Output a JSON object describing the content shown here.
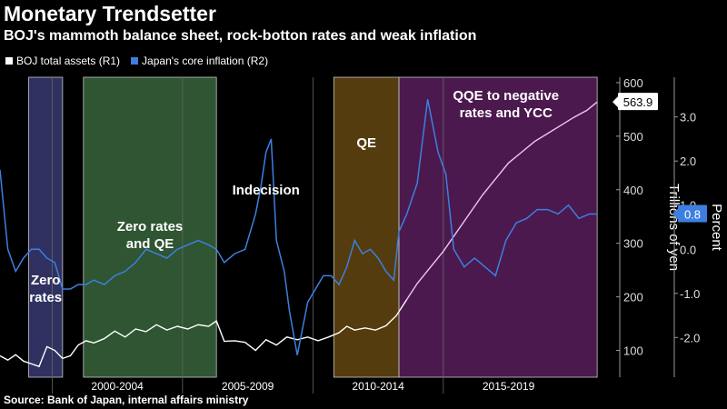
{
  "title": "Monetary Trendsetter",
  "subtitle": "BOJ's mammoth balance sheet, rock-botton rates and weak inflation",
  "source": "Source: Bank of Japan, internal affairs ministry",
  "colors": {
    "background": "#000000",
    "assets_line": "#ffffff",
    "inflation_line": "#3d7fe0",
    "zero_rates_band": "#3c3d78",
    "zero_rates_qe_band": "#3b6a3e",
    "qe_band": "#6a4b12",
    "qqe_band": "#5e1f62",
    "assets_after_2013": "#f2c6f0",
    "badge_bg": "#ffffff",
    "badge_blue": "#3d7fe0"
  },
  "chart_data": {
    "type": "line",
    "title": "Monetary Trendsetter",
    "subtitle": "BOJ's mammoth balance sheet, rock-botton rates and weak inflation",
    "x_range": [
      1998.0,
      2021.0
    ],
    "x_ticks": [
      {
        "label": "2000-2004",
        "value": 2002.5
      },
      {
        "label": "2005-2009",
        "value": 2007.5
      },
      {
        "label": "2010-2014",
        "value": 2012.5
      },
      {
        "label": "2015-2019",
        "value": 2017.5
      }
    ],
    "x_separators": [
      2000,
      2005,
      2010,
      2015
    ],
    "left_axis": {
      "label": "Trillions of yen",
      "range": [
        50,
        610
      ],
      "ticks": [
        100,
        200,
        300,
        400,
        500,
        600
      ]
    },
    "right_axis": {
      "label": "Percent",
      "range": [
        -2.9,
        3.9
      ],
      "ticks": [
        3.0,
        2.0,
        1.0,
        0.0,
        -1.0,
        -2.0
      ],
      "tick_labels": [
        "3.0",
        "2.0",
        "1.0",
        "0.0",
        "-1.0",
        "-2.0"
      ]
    },
    "legend": [
      {
        "label": "BOJ total assets (R1)",
        "color": "#ffffff"
      },
      {
        "label": "Japan's core inflation  (R2)",
        "color": "#3d7fe0"
      }
    ],
    "regimes": [
      {
        "label": "Zero rates",
        "start": 1999.1,
        "end": 2000.4,
        "color": "#3c3d78"
      },
      {
        "label": "Zero rates and QE",
        "start": 2001.2,
        "end": 2006.3,
        "color": "#3b6a3e"
      },
      {
        "label": "QE",
        "start": 2010.8,
        "end": 2013.3,
        "color": "#6a4b12"
      },
      {
        "label": "QQE to negative rates and YCC",
        "start": 2013.3,
        "end": 2020.9,
        "color": "#5e1f62"
      }
    ],
    "annotations": [
      {
        "text": "Indecision",
        "x": 2008.2,
        "y_pct": 1.2
      }
    ],
    "series": [
      {
        "name": "BOJ total assets (R1)",
        "axis": "left",
        "x": [
          1998.0,
          1998.3,
          1998.6,
          1998.9,
          1999.2,
          1999.5,
          1999.8,
          2000.1,
          2000.4,
          2000.7,
          2001.0,
          2001.3,
          2001.6,
          2002.0,
          2002.4,
          2002.8,
          2003.2,
          2003.6,
          2004.0,
          2004.4,
          2004.8,
          2005.2,
          2005.6,
          2006.0,
          2006.3,
          2006.6,
          2007.0,
          2007.4,
          2007.8,
          2008.2,
          2008.6,
          2009.0,
          2009.4,
          2009.8,
          2010.2,
          2010.6,
          2011.0,
          2011.3,
          2011.6,
          2012.0,
          2012.4,
          2012.8,
          2013.2,
          2013.6,
          2014.0,
          2014.5,
          2015.0,
          2015.5,
          2016.0,
          2016.5,
          2017.0,
          2017.5,
          2018.0,
          2018.5,
          2019.0,
          2019.5,
          2020.0,
          2020.5,
          2020.9
        ],
        "values": [
          90,
          82,
          92,
          80,
          75,
          70,
          107,
          100,
          85,
          90,
          110,
          118,
          114,
          122,
          136,
          125,
          140,
          135,
          148,
          138,
          145,
          140,
          148,
          145,
          155,
          117,
          118,
          115,
          100,
          120,
          110,
          125,
          120,
          125,
          118,
          125,
          133,
          145,
          138,
          142,
          138,
          146,
          165,
          195,
          225,
          255,
          285,
          320,
          355,
          390,
          420,
          450,
          470,
          490,
          505,
          520,
          535,
          548,
          563.9
        ]
      },
      {
        "name": "Japan's core inflation  (R2)",
        "axis": "right",
        "x": [
          1998.0,
          1998.3,
          1998.6,
          1998.9,
          1999.2,
          1999.5,
          1999.8,
          2000.1,
          2000.4,
          2000.7,
          2001.0,
          2001.3,
          2001.6,
          2002.0,
          2002.4,
          2002.8,
          2003.2,
          2003.6,
          2004.0,
          2004.4,
          2004.8,
          2005.2,
          2005.6,
          2006.0,
          2006.3,
          2006.6,
          2007.0,
          2007.4,
          2007.8,
          2008.0,
          2008.2,
          2008.4,
          2008.6,
          2008.9,
          2009.1,
          2009.4,
          2009.8,
          2010.1,
          2010.4,
          2010.7,
          2011.0,
          2011.3,
          2011.6,
          2011.9,
          2012.2,
          2012.5,
          2012.8,
          2013.1,
          2013.3,
          2013.6,
          2014.0,
          2014.4,
          2014.8,
          2015.1,
          2015.4,
          2015.8,
          2016.2,
          2016.6,
          2017.0,
          2017.4,
          2017.8,
          2018.2,
          2018.6,
          2019.0,
          2019.4,
          2019.8,
          2020.2,
          2020.6,
          2020.9
        ],
        "values": [
          1.8,
          0.0,
          -0.5,
          -0.2,
          0.0,
          0.0,
          -0.2,
          -0.3,
          -0.9,
          -0.9,
          -0.8,
          -0.8,
          -0.7,
          -0.8,
          -0.6,
          -0.5,
          -0.3,
          0.0,
          -0.1,
          -0.2,
          0.0,
          0.1,
          0.2,
          0.1,
          0.0,
          -0.3,
          -0.1,
          0.0,
          0.8,
          1.4,
          2.2,
          2.5,
          0.2,
          -0.5,
          -1.4,
          -2.4,
          -1.2,
          -0.9,
          -0.6,
          -0.6,
          -0.8,
          -0.4,
          0.2,
          -0.1,
          0.0,
          -0.2,
          -0.5,
          -0.7,
          0.4,
          0.8,
          1.5,
          3.4,
          2.2,
          1.7,
          0.0,
          -0.4,
          -0.2,
          -0.4,
          -0.6,
          0.2,
          0.6,
          0.7,
          0.9,
          0.9,
          0.8,
          1.0,
          0.7,
          0.8,
          0.8
        ]
      }
    ],
    "end_labels": [
      {
        "series": 0,
        "text": "563.9"
      },
      {
        "series": 1,
        "text": "0.8"
      }
    ]
  }
}
